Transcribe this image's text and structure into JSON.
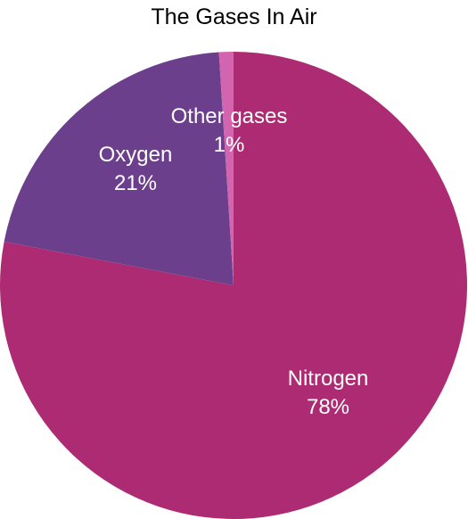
{
  "chart_data": {
    "type": "pie",
    "title": "The Gases In Air",
    "slices": [
      {
        "label": "Nitrogen",
        "value": 78,
        "value_label": "78%",
        "color": "#ad2b73"
      },
      {
        "label": "Oxygen",
        "value": 21,
        "value_label": "21%",
        "color": "#6c3f8c"
      },
      {
        "label": "Other gases",
        "value": 1,
        "value_label": "1%",
        "color": "#d264b0"
      }
    ]
  }
}
